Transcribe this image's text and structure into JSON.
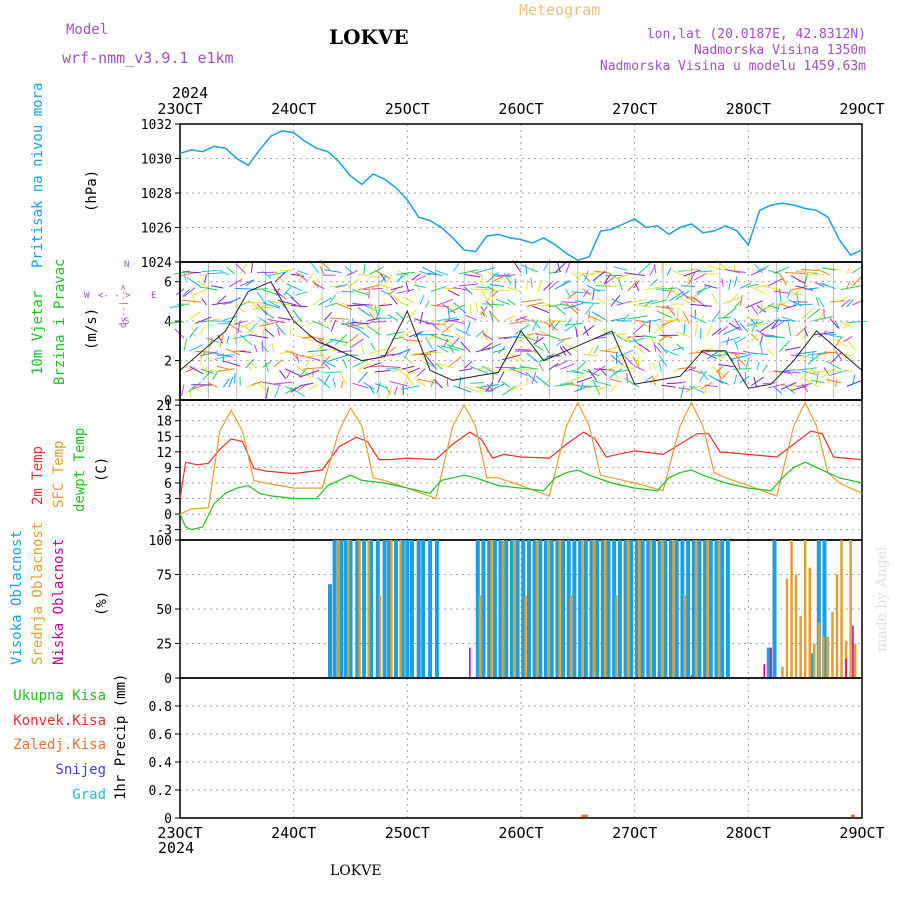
{
  "header": {
    "model_label": "Model",
    "model_name": "wrf-nmm_v3.9.1  e1km",
    "station": "LOKVE",
    "meteogram": "Meteogram",
    "lonlat": "lon,lat (20.0187E, 42.8312N)",
    "elevation": "Nadmorska Visina 1350m",
    "model_elevation": "Nadmorska Visina u modelu 1459.63m",
    "year_top": "2024",
    "year_bottom": "2024",
    "footer_station": "LOKVE",
    "credit": "made by Angel"
  },
  "colors": {
    "pressure": "#1aa0e0",
    "temp2m": "#e83030",
    "sfc": "#e0a030",
    "dewpt": "#20c020",
    "high_cloud": "#1aa0e0",
    "mid_cloud": "#e0a030",
    "low_cloud": "#c000a0",
    "purple": "#a050c0",
    "gold": "#e8c080"
  },
  "wind_label": {
    "n": "N",
    "s": "S",
    "w": "W",
    "e": "E",
    "row1": "<- - >",
    "row2": "d<--|-->"
  },
  "chart_data": [
    {
      "type": "line",
      "name": "pressure",
      "ylabel_main": "Pritisak na nivou mora",
      "unit": "(hPa)",
      "ylim": [
        1024,
        1032
      ],
      "yticks": [
        "1024",
        "1026",
        "1028",
        "1030",
        "1032"
      ],
      "xticks": [
        "23OCT",
        "24OCT",
        "25OCT",
        "26OCT",
        "27OCT",
        "28OCT",
        "29OCT"
      ],
      "series": [
        {
          "x": [
            0,
            0.1,
            0.2,
            0.3,
            0.4,
            0.5,
            0.6,
            0.7,
            0.8,
            0.9,
            1.0,
            1.1,
            1.2,
            1.3,
            1.4,
            1.5,
            1.6,
            1.7,
            1.8,
            1.9,
            2.0,
            2.1,
            2.2,
            2.3,
            2.4,
            2.5,
            2.6,
            2.7,
            2.8,
            2.9,
            3.0,
            3.1,
            3.2,
            3.3,
            3.4,
            3.5,
            3.6,
            3.7,
            3.8,
            3.9,
            4.0,
            4.1,
            4.2,
            4.3,
            4.4,
            4.5,
            4.6,
            4.7,
            4.8,
            4.9,
            5.0,
            5.1,
            5.2,
            5.3,
            5.4,
            5.5,
            5.6,
            5.7,
            5.8,
            5.9,
            6.0
          ],
          "y": [
            1030.3,
            1030.5,
            1030.4,
            1030.7,
            1030.6,
            1030.0,
            1029.6,
            1030.5,
            1031.3,
            1031.6,
            1031.5,
            1031.0,
            1030.6,
            1030.4,
            1029.8,
            1029.0,
            1028.5,
            1029.1,
            1028.8,
            1028.3,
            1027.6,
            1026.6,
            1026.4,
            1026.0,
            1025.4,
            1024.7,
            1024.6,
            1025.5,
            1025.6,
            1025.4,
            1025.3,
            1025.1,
            1025.4,
            1025.0,
            1024.5,
            1024.1,
            1024.3,
            1025.8,
            1025.9,
            1026.2,
            1026.5,
            1026.0,
            1026.1,
            1025.6,
            1026.0,
            1026.2,
            1025.7,
            1025.8,
            1026.1,
            1025.8,
            1025.0,
            1027.0,
            1027.3,
            1027.4,
            1027.3,
            1027.1,
            1027.0,
            1026.6,
            1025.3,
            1024.4,
            1024.7
          ]
        }
      ]
    },
    {
      "type": "line",
      "name": "wind",
      "ylabel_lines": [
        "10m Vjetar",
        "Brzina i Pravac"
      ],
      "unit": "(m/s)",
      "ylim": [
        0,
        7
      ],
      "yticks": [
        "0",
        "2",
        "4",
        "6"
      ],
      "series": [
        {
          "x": [
            0,
            0.2,
            0.4,
            0.6,
            0.8,
            1.0,
            1.2,
            1.4,
            1.6,
            1.8,
            2.0,
            2.2,
            2.4,
            2.6,
            2.8,
            3.0,
            3.2,
            3.4,
            3.6,
            3.8,
            4.0,
            4.2,
            4.4,
            4.6,
            4.8,
            5.0,
            5.2,
            5.4,
            5.6,
            5.8,
            6.0
          ],
          "y": [
            1.5,
            2.5,
            3.5,
            5.5,
            6.0,
            4.0,
            3.0,
            2.5,
            2.0,
            2.2,
            4.5,
            1.5,
            1.0,
            1.2,
            1.4,
            3.5,
            2.0,
            2.5,
            3.0,
            3.5,
            0.8,
            1.0,
            1.2,
            2.5,
            2.5,
            0.6,
            0.8,
            2.0,
            3.5,
            2.5,
            1.5
          ]
        }
      ]
    },
    {
      "type": "line",
      "name": "temperature",
      "ylabel_lines": [
        "2m Temp",
        "SFC Temp",
        "dewpt Temp"
      ],
      "unit": "(C)",
      "ylim": [
        -5,
        22
      ],
      "yticks": [
        "-3",
        "0",
        "3",
        "6",
        "9",
        "12",
        "15",
        "18",
        "21"
      ],
      "series": [
        {
          "name": "2m Temp",
          "x": [
            0,
            0.05,
            0.15,
            0.25,
            0.35,
            0.45,
            0.55,
            0.65,
            0.75,
            1.0,
            1.25,
            1.4,
            1.55,
            1.65,
            1.75,
            1.85,
            2.0,
            2.25,
            2.4,
            2.55,
            2.65,
            2.75,
            2.85,
            3.0,
            3.25,
            3.4,
            3.55,
            3.65,
            3.75,
            3.85,
            4.0,
            4.25,
            4.4,
            4.55,
            4.65,
            4.75,
            4.85,
            5.0,
            5.25,
            5.4,
            5.55,
            5.65,
            5.75,
            5.85,
            6.0
          ],
          "y": [
            3,
            10,
            9.5,
            9.8,
            12.5,
            14.5,
            14,
            8.8,
            8.3,
            7.8,
            8.5,
            13,
            14.8,
            14,
            10.5,
            10.5,
            10.8,
            10.5,
            13.5,
            15.8,
            14.5,
            10.8,
            11.5,
            11,
            10.8,
            13.5,
            15.8,
            14.5,
            11,
            11.5,
            12.2,
            11.5,
            13.5,
            15.5,
            15.5,
            12,
            11.8,
            11.5,
            11,
            13.5,
            16,
            15.5,
            11,
            10.8,
            10.5
          ]
        },
        {
          "name": "SFC Temp",
          "x": [
            0,
            0.1,
            0.25,
            0.35,
            0.45,
            0.55,
            0.65,
            0.75,
            1.0,
            1.25,
            1.4,
            1.5,
            1.6,
            1.7,
            1.8,
            2.0,
            2.25,
            2.4,
            2.5,
            2.6,
            2.7,
            2.8,
            3.0,
            3.25,
            3.4,
            3.5,
            3.6,
            3.7,
            3.8,
            4.0,
            4.25,
            4.4,
            4.5,
            4.6,
            4.7,
            4.8,
            5.0,
            5.25,
            5.4,
            5.5,
            5.6,
            5.7,
            5.8,
            6.0
          ],
          "y": [
            0,
            1,
            1.2,
            16,
            20,
            16,
            6.5,
            6,
            5,
            5,
            16,
            20.5,
            17,
            7,
            6.5,
            5,
            3,
            17,
            21,
            17,
            7,
            7,
            5.5,
            3.5,
            17,
            21.5,
            17,
            7.5,
            7,
            6,
            4.5,
            17,
            21.5,
            17,
            8,
            7,
            5.5,
            3.5,
            17,
            21.5,
            17,
            8,
            6,
            4
          ]
        },
        {
          "name": "dewpt Temp",
          "x": [
            0,
            0.05,
            0.1,
            0.2,
            0.3,
            0.4,
            0.5,
            0.6,
            0.7,
            0.8,
            1.0,
            1.2,
            1.3,
            1.4,
            1.5,
            1.6,
            1.8,
            2.0,
            2.2,
            2.3,
            2.4,
            2.5,
            2.6,
            2.8,
            3.0,
            3.2,
            3.3,
            3.4,
            3.5,
            3.6,
            3.8,
            4.0,
            4.2,
            4.3,
            4.4,
            4.5,
            4.6,
            4.8,
            5.0,
            5.2,
            5.3,
            5.4,
            5.5,
            5.6,
            5.8,
            6.0
          ],
          "y": [
            0,
            -2.5,
            -3,
            -2.5,
            2,
            4,
            5,
            5.5,
            4,
            3.5,
            3,
            3,
            5.5,
            6.5,
            7.5,
            6.5,
            6,
            5,
            4,
            6.5,
            7,
            7.5,
            7,
            5.5,
            5,
            4.5,
            7,
            8,
            8.5,
            7.5,
            6,
            5,
            4.5,
            7,
            8,
            8.5,
            7.5,
            6,
            5,
            4.5,
            7,
            9,
            10,
            9,
            7,
            6
          ]
        }
      ]
    },
    {
      "type": "bar",
      "name": "cloud",
      "ylabel_lines": [
        "Visoka Oblacnost",
        "Srednja Oblacnost",
        "Niska Oblacnost"
      ],
      "unit": "(%)",
      "ylim": [
        0,
        100
      ],
      "yticks": [
        "0",
        "25",
        "50",
        "75",
        "100"
      ],
      "series": [
        {
          "name": "Visoka Oblacnost",
          "x": [
            1.32,
            1.36,
            1.42,
            1.46,
            1.5,
            1.56,
            1.62,
            1.68,
            1.74,
            1.8,
            1.84,
            1.9,
            1.96,
            2.0,
            2.04,
            2.1,
            2.14,
            2.2,
            2.26,
            2.62,
            2.67,
            2.72,
            2.77,
            2.82,
            2.87,
            2.92,
            2.97,
            3.02,
            3.07,
            3.12,
            3.17,
            3.22,
            3.27,
            3.32,
            3.37,
            3.42,
            3.47,
            3.52,
            3.57,
            3.62,
            3.67,
            3.72,
            3.77,
            3.82,
            3.87,
            3.92,
            3.97,
            4.02,
            4.07,
            4.12,
            4.17,
            4.22,
            4.27,
            4.32,
            4.37,
            4.42,
            4.47,
            4.52,
            4.57,
            4.62,
            4.67,
            4.72,
            4.77,
            4.82,
            5.18,
            5.23,
            5.57,
            5.62,
            5.67
          ],
          "y": [
            68,
            100,
            100,
            100,
            100,
            100,
            100,
            100,
            100,
            100,
            100,
            100,
            100,
            100,
            100,
            100,
            100,
            100,
            100,
            100,
            100,
            100,
            100,
            100,
            100,
            100,
            100,
            100,
            100,
            100,
            100,
            100,
            100,
            100,
            100,
            100,
            100,
            100,
            100,
            100,
            100,
            100,
            100,
            100,
            100,
            100,
            100,
            100,
            100,
            100,
            100,
            100,
            100,
            100,
            100,
            100,
            100,
            100,
            100,
            100,
            100,
            100,
            100,
            100,
            22,
            100,
            18,
            100,
            100
          ]
        },
        {
          "name": "Srednja Oblacnost",
          "x": [
            1.39,
            1.48,
            1.58,
            1.66,
            1.76,
            1.86,
            1.94,
            2.64,
            2.74,
            2.84,
            2.94,
            3.04,
            3.14,
            3.24,
            3.34,
            3.44,
            3.54,
            3.64,
            3.74,
            3.84,
            3.94,
            4.04,
            4.14,
            4.24,
            4.34,
            4.44,
            4.54,
            4.64,
            4.74,
            5.3,
            5.34,
            5.38,
            5.42,
            5.46,
            5.5,
            5.54,
            5.58,
            5.62,
            5.66,
            5.7,
            5.74,
            5.78,
            5.82,
            5.86,
            5.9,
            5.94
          ],
          "y": [
            100,
            100,
            100,
            100,
            60,
            100,
            100,
            60,
            100,
            100,
            100,
            60,
            100,
            100,
            100,
            60,
            100,
            100,
            100,
            60,
            100,
            100,
            100,
            100,
            100,
            60,
            100,
            100,
            100,
            8,
            72,
            100,
            75,
            45,
            100,
            80,
            25,
            40,
            30,
            30,
            48,
            75,
            100,
            27,
            100,
            25
          ]
        },
        {
          "name": "Niska Oblacnost",
          "x": [
            2.55,
            4.5,
            5.14,
            5.2,
            5.86,
            5.92
          ],
          "y": [
            22,
            2,
            10,
            22,
            14,
            38
          ]
        }
      ]
    },
    {
      "type": "bar",
      "name": "precip",
      "legend": [
        "Ukupna Kisa",
        "Konvek.Kisa",
        "Zaledj.Kisa",
        "Snijeg",
        "Grad"
      ],
      "unit": "1hr Precip (mm)",
      "ylim": [
        0,
        1
      ],
      "yticks": [
        "0",
        "0.2",
        "0.4",
        "0.6",
        "0.8"
      ],
      "series": [
        {
          "name": "Zaledj.Kisa",
          "x": [
            3.55,
            3.57,
            5.92
          ],
          "y": [
            0.01,
            0.01,
            0.01
          ]
        }
      ]
    }
  ]
}
